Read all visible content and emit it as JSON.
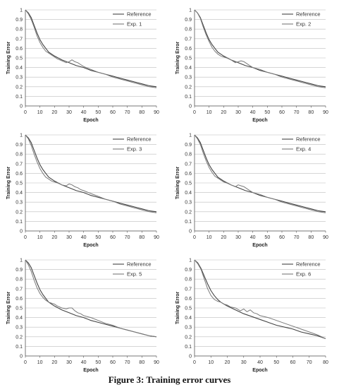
{
  "figure": {
    "caption": "Figure 3: Training error curves"
  },
  "colors": {
    "reference": "#444444",
    "experiment": "#7a7a7a",
    "grid": "#bdbdbd",
    "axis": "#555555"
  },
  "chart_data": [
    {
      "type": "line",
      "xlabel": "Epoch",
      "ylabel": "Training Error",
      "xlim": [
        0,
        90
      ],
      "ylim": [
        0,
        1
      ],
      "xticks": [
        0,
        10,
        20,
        30,
        40,
        50,
        60,
        70,
        80,
        90
      ],
      "yticks": [
        0,
        0.1,
        0.2,
        0.3,
        0.4,
        0.5,
        0.6,
        0.7,
        0.8,
        0.9,
        1
      ],
      "grid": "horizontal",
      "legend": "top-right",
      "series": [
        {
          "name": "Reference",
          "x": [
            0,
            2,
            4,
            6,
            8,
            10,
            12,
            14,
            16,
            18,
            20,
            25,
            30,
            35,
            40,
            45,
            50,
            55,
            60,
            65,
            70,
            75,
            80,
            85,
            90
          ],
          "y": [
            1.0,
            0.97,
            0.92,
            0.84,
            0.76,
            0.69,
            0.64,
            0.6,
            0.56,
            0.54,
            0.52,
            0.48,
            0.45,
            0.42,
            0.4,
            0.37,
            0.35,
            0.33,
            0.31,
            0.29,
            0.27,
            0.25,
            0.23,
            0.21,
            0.2
          ]
        },
        {
          "name": "Exp. 1",
          "x": [
            0,
            2,
            4,
            6,
            8,
            10,
            12,
            14,
            16,
            18,
            20,
            22,
            25,
            28,
            30,
            32,
            34,
            36,
            38,
            40,
            45,
            50,
            55,
            60,
            65,
            70,
            75,
            80,
            85,
            90
          ],
          "y": [
            1.0,
            0.96,
            0.9,
            0.82,
            0.73,
            0.66,
            0.61,
            0.57,
            0.55,
            0.53,
            0.51,
            0.49,
            0.47,
            0.45,
            0.46,
            0.48,
            0.46,
            0.45,
            0.43,
            0.41,
            0.38,
            0.35,
            0.33,
            0.3,
            0.28,
            0.26,
            0.24,
            0.22,
            0.2,
            0.19
          ]
        }
      ]
    },
    {
      "type": "line",
      "xlabel": "Epoch",
      "ylabel": "Training Error",
      "xlim": [
        0,
        90
      ],
      "ylim": [
        0,
        1
      ],
      "xticks": [
        0,
        10,
        20,
        30,
        40,
        50,
        60,
        70,
        80,
        90
      ],
      "yticks": [
        0,
        0.1,
        0.2,
        0.3,
        0.4,
        0.5,
        0.6,
        0.7,
        0.8,
        0.9,
        1
      ],
      "grid": "horizontal",
      "legend": "top-right",
      "series": [
        {
          "name": "Reference",
          "x": [
            0,
            2,
            4,
            6,
            8,
            10,
            12,
            14,
            16,
            18,
            20,
            25,
            30,
            35,
            40,
            45,
            50,
            55,
            60,
            65,
            70,
            75,
            80,
            85,
            90
          ],
          "y": [
            1.0,
            0.97,
            0.92,
            0.84,
            0.76,
            0.69,
            0.64,
            0.6,
            0.56,
            0.54,
            0.52,
            0.48,
            0.45,
            0.42,
            0.4,
            0.37,
            0.35,
            0.33,
            0.31,
            0.29,
            0.27,
            0.25,
            0.23,
            0.21,
            0.2
          ]
        },
        {
          "name": "Exp. 2",
          "x": [
            0,
            2,
            4,
            6,
            8,
            10,
            12,
            14,
            16,
            18,
            20,
            22,
            25,
            28,
            30,
            32,
            34,
            36,
            38,
            40,
            45,
            50,
            55,
            60,
            65,
            70,
            75,
            80,
            85,
            90
          ],
          "y": [
            1.0,
            0.97,
            0.91,
            0.82,
            0.74,
            0.67,
            0.61,
            0.57,
            0.54,
            0.52,
            0.51,
            0.5,
            0.48,
            0.45,
            0.46,
            0.47,
            0.46,
            0.44,
            0.42,
            0.4,
            0.38,
            0.35,
            0.33,
            0.3,
            0.28,
            0.26,
            0.24,
            0.22,
            0.2,
            0.19
          ]
        }
      ]
    },
    {
      "type": "line",
      "xlabel": "Epoch",
      "ylabel": "Training Error",
      "xlim": [
        0,
        90
      ],
      "ylim": [
        0,
        1
      ],
      "xticks": [
        0,
        10,
        20,
        30,
        40,
        50,
        60,
        70,
        80,
        90
      ],
      "yticks": [
        0,
        0.1,
        0.2,
        0.3,
        0.4,
        0.5,
        0.6,
        0.7,
        0.8,
        0.9,
        1
      ],
      "grid": "horizontal",
      "legend": "top-right",
      "series": [
        {
          "name": "Reference",
          "x": [
            0,
            2,
            4,
            6,
            8,
            10,
            12,
            14,
            16,
            18,
            20,
            25,
            30,
            35,
            40,
            45,
            50,
            55,
            60,
            65,
            70,
            75,
            80,
            85,
            90
          ],
          "y": [
            1.0,
            0.97,
            0.92,
            0.84,
            0.76,
            0.69,
            0.64,
            0.6,
            0.56,
            0.54,
            0.52,
            0.48,
            0.45,
            0.42,
            0.4,
            0.37,
            0.35,
            0.33,
            0.31,
            0.29,
            0.27,
            0.25,
            0.23,
            0.21,
            0.2
          ]
        },
        {
          "name": "Exp. 3",
          "x": [
            0,
            2,
            4,
            6,
            8,
            10,
            12,
            14,
            16,
            18,
            20,
            22,
            25,
            28,
            30,
            32,
            34,
            36,
            38,
            40,
            45,
            50,
            55,
            60,
            65,
            70,
            75,
            80,
            85,
            90
          ],
          "y": [
            1.0,
            0.96,
            0.89,
            0.8,
            0.72,
            0.65,
            0.6,
            0.56,
            0.54,
            0.52,
            0.51,
            0.5,
            0.48,
            0.47,
            0.49,
            0.48,
            0.46,
            0.45,
            0.43,
            0.42,
            0.39,
            0.36,
            0.33,
            0.31,
            0.28,
            0.26,
            0.24,
            0.22,
            0.2,
            0.19
          ]
        }
      ]
    },
    {
      "type": "line",
      "xlabel": "Epoch",
      "ylabel": "Training Error",
      "xlim": [
        0,
        90
      ],
      "ylim": [
        0,
        1
      ],
      "xticks": [
        0,
        10,
        20,
        30,
        40,
        50,
        60,
        70,
        80,
        90
      ],
      "yticks": [
        0,
        0.1,
        0.2,
        0.3,
        0.4,
        0.5,
        0.6,
        0.7,
        0.8,
        0.9,
        1
      ],
      "grid": "horizontal",
      "legend": "top-right",
      "series": [
        {
          "name": "Reference",
          "x": [
            0,
            2,
            4,
            6,
            8,
            10,
            12,
            14,
            16,
            18,
            20,
            25,
            30,
            35,
            40,
            45,
            50,
            55,
            60,
            65,
            70,
            75,
            80,
            85,
            90
          ],
          "y": [
            1.0,
            0.97,
            0.92,
            0.84,
            0.76,
            0.69,
            0.64,
            0.6,
            0.56,
            0.54,
            0.52,
            0.48,
            0.45,
            0.42,
            0.4,
            0.37,
            0.35,
            0.33,
            0.31,
            0.29,
            0.27,
            0.25,
            0.23,
            0.21,
            0.2
          ]
        },
        {
          "name": "Exp. 4",
          "x": [
            0,
            2,
            4,
            6,
            8,
            10,
            12,
            14,
            16,
            18,
            20,
            22,
            25,
            28,
            30,
            32,
            34,
            36,
            38,
            40,
            45,
            50,
            55,
            60,
            65,
            70,
            75,
            80,
            85,
            90
          ],
          "y": [
            1.0,
            0.96,
            0.9,
            0.81,
            0.73,
            0.66,
            0.61,
            0.57,
            0.55,
            0.53,
            0.51,
            0.5,
            0.48,
            0.46,
            0.48,
            0.47,
            0.46,
            0.44,
            0.42,
            0.4,
            0.38,
            0.35,
            0.33,
            0.3,
            0.28,
            0.26,
            0.24,
            0.22,
            0.2,
            0.19
          ]
        }
      ]
    },
    {
      "type": "line",
      "xlabel": "Epoch",
      "ylabel": "Training Error",
      "xlim": [
        0,
        90
      ],
      "ylim": [
        0,
        1
      ],
      "xticks": [
        0,
        10,
        20,
        30,
        40,
        50,
        60,
        70,
        80,
        90
      ],
      "yticks": [
        0,
        0.1,
        0.2,
        0.3,
        0.4,
        0.5,
        0.6,
        0.7,
        0.8,
        0.9,
        1
      ],
      "grid": "horizontal",
      "legend": "top-right",
      "series": [
        {
          "name": "Reference",
          "x": [
            0,
            2,
            4,
            6,
            8,
            10,
            12,
            14,
            16,
            18,
            20,
            25,
            30,
            35,
            40,
            45,
            50,
            55,
            60,
            65,
            70,
            75,
            80,
            85,
            90
          ],
          "y": [
            1.0,
            0.97,
            0.92,
            0.84,
            0.76,
            0.69,
            0.64,
            0.6,
            0.56,
            0.54,
            0.52,
            0.48,
            0.45,
            0.42,
            0.4,
            0.37,
            0.35,
            0.33,
            0.31,
            0.29,
            0.27,
            0.25,
            0.23,
            0.21,
            0.2
          ]
        },
        {
          "name": "Exp. 5",
          "x": [
            0,
            2,
            4,
            6,
            8,
            10,
            12,
            14,
            16,
            18,
            20,
            22,
            25,
            28,
            30,
            32,
            34,
            36,
            38,
            40,
            45,
            50,
            55,
            60,
            65,
            70,
            75,
            80,
            85,
            90
          ],
          "y": [
            1.0,
            0.95,
            0.88,
            0.79,
            0.71,
            0.65,
            0.61,
            0.58,
            0.56,
            0.55,
            0.54,
            0.52,
            0.5,
            0.49,
            0.5,
            0.5,
            0.47,
            0.45,
            0.44,
            0.42,
            0.4,
            0.37,
            0.34,
            0.32,
            0.29,
            0.27,
            0.25,
            0.23,
            0.21,
            0.2
          ]
        }
      ]
    },
    {
      "type": "line",
      "xlabel": "Epoch",
      "ylabel": "Training Error",
      "xlim": [
        0,
        80
      ],
      "ylim": [
        0,
        1
      ],
      "xticks": [
        0,
        10,
        20,
        30,
        40,
        50,
        60,
        70,
        80
      ],
      "yticks": [
        0,
        0.1,
        0.2,
        0.3,
        0.4,
        0.5,
        0.6,
        0.7,
        0.8,
        0.9,
        1
      ],
      "grid": "horizontal",
      "legend": "top-right",
      "series": [
        {
          "name": "Reference",
          "x": [
            0,
            2,
            4,
            6,
            8,
            10,
            12,
            14,
            16,
            18,
            20,
            25,
            30,
            35,
            40,
            45,
            50,
            55,
            60,
            65,
            70,
            75,
            80
          ],
          "y": [
            1.0,
            0.97,
            0.91,
            0.83,
            0.75,
            0.68,
            0.63,
            0.59,
            0.56,
            0.54,
            0.52,
            0.48,
            0.44,
            0.41,
            0.38,
            0.35,
            0.32,
            0.3,
            0.28,
            0.25,
            0.23,
            0.21,
            0.18
          ]
        },
        {
          "name": "Exp. 6",
          "x": [
            0,
            2,
            4,
            6,
            8,
            10,
            12,
            14,
            16,
            18,
            20,
            22,
            25,
            28,
            30,
            32,
            34,
            36,
            38,
            40,
            45,
            50,
            55,
            60,
            65,
            70,
            75,
            80
          ],
          "y": [
            1.0,
            0.96,
            0.9,
            0.8,
            0.7,
            0.63,
            0.59,
            0.57,
            0.56,
            0.54,
            0.53,
            0.51,
            0.5,
            0.47,
            0.49,
            0.46,
            0.48,
            0.45,
            0.44,
            0.42,
            0.4,
            0.37,
            0.34,
            0.31,
            0.28,
            0.25,
            0.22,
            0.18
          ]
        }
      ]
    }
  ]
}
